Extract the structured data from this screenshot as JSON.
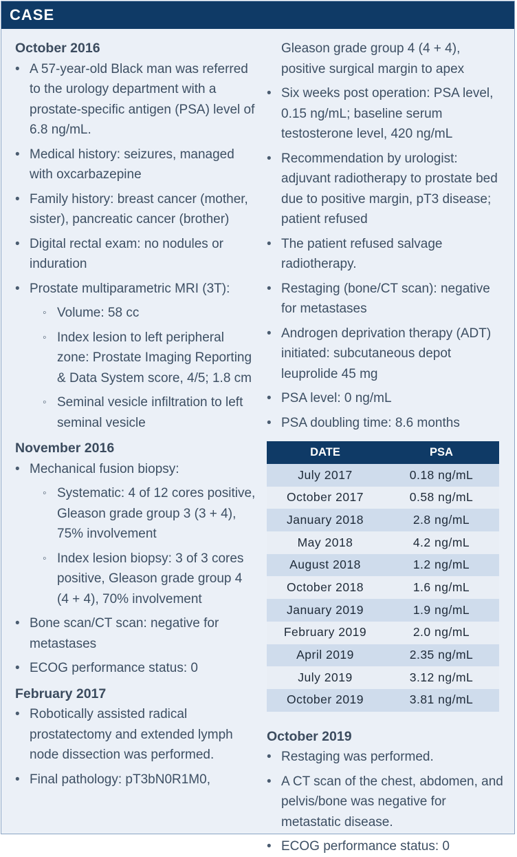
{
  "header": {
    "title": "CASE"
  },
  "left": {
    "oct2016": {
      "heading": "October 2016",
      "bullets": [
        "A 57-year-old Black man was referred to the urology department with a prostate-specific antigen (PSA) level of 6.8 ng/mL.",
        "Medical history: seizures, managed with oxcarbazepine",
        "Family history: breast cancer (mother, sister), pancreatic cancer (brother)",
        "Digital rectal exam: no nodules or induration",
        "Prostate multiparametric MRI (3T):"
      ],
      "mri_sub": [
        "Volume: 58 cc",
        "Index lesion to left peripheral zone: Prostate Imaging Reporting & Data System score, 4/5; 1.8 cm",
        "Seminal vesicle infiltration to left seminal vesicle"
      ]
    },
    "nov2016": {
      "heading": "November 2016",
      "bullet1": "Mechanical fusion biopsy:",
      "sub": [
        "Systematic: 4 of 12 cores positive, Gleason grade group 3 (3 + 4), 75% involvement",
        "Index lesion biopsy: 3 of 3 cores positive, Gleason grade group 4 (4 + 4), 70% involvement"
      ],
      "bullets": [
        "Bone scan/CT scan: negative for metastases",
        "ECOG performance status: 0"
      ]
    },
    "feb2017": {
      "heading": "February 2017",
      "bullets": [
        "Robotically assisted radical prostatectomy and extended lymph node dissection was performed.",
        "Final pathology: pT3bN0R1M0,"
      ]
    }
  },
  "right": {
    "continuation": "Gleason grade group 4 (4 + 4), positive surgical margin to apex",
    "bullets": [
      "Six weeks post operation: PSA level, 0.15 ng/mL; baseline serum testosterone level, 420 ng/mL",
      "Recommendation by urologist: adjuvant radiotherapy to prostate bed due to positive margin, pT3 disease; patient refused",
      "The patient refused salvage radiotherapy.",
      "Restaging (bone/CT scan): negative for metastases",
      "Androgen deprivation therapy (ADT) initiated: subcutaneous depot leuprolide 45 mg",
      "PSA level: 0 ng/mL",
      "PSA doubling time: 8.6 months"
    ],
    "table": {
      "headers": [
        "DATE",
        "PSA"
      ],
      "rows": [
        [
          "July 2017",
          "0.18 ng/mL"
        ],
        [
          "October 2017",
          "0.58 ng/mL"
        ],
        [
          "January 2018",
          "2.8 ng/mL"
        ],
        [
          "May 2018",
          "4.2 ng/mL"
        ],
        [
          "August 2018",
          "1.2 ng/mL"
        ],
        [
          "October 2018",
          "1.6 ng/mL"
        ],
        [
          "January 2019",
          "1.9 ng/mL"
        ],
        [
          "February 2019",
          "2.0 ng/mL"
        ],
        [
          "April 2019",
          "2.35 ng/mL"
        ],
        [
          "July 2019",
          "3.12 ng/mL"
        ],
        [
          "October 2019",
          "3.81 ng/mL"
        ]
      ]
    },
    "oct2019": {
      "heading": "October 2019",
      "bullets": [
        "Restaging was performed.",
        "A CT scan of the chest, abdomen, and pelvis/bone was negative for metastatic disease.",
        "ECOG performance status: 0"
      ]
    }
  }
}
